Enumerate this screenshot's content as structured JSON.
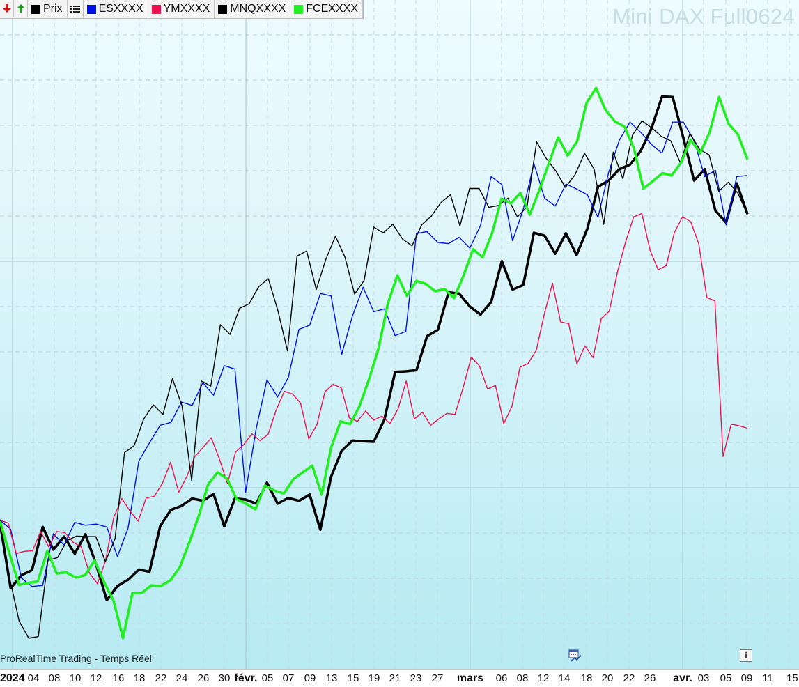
{
  "window": {
    "title": "Mini DAX Full0624"
  },
  "legend": {
    "buttons": [
      {
        "icon": "arrow-down-icon"
      },
      {
        "icon": "arrow-up-icon"
      }
    ],
    "items": [
      {
        "label": "Prix",
        "color": "#000000"
      },
      {
        "label": "ESXXXX",
        "color": "#0010e8"
      },
      {
        "label": "YMXXXX",
        "color": "#f0104f"
      },
      {
        "label": "MNQXXXX",
        "color": "#000000"
      },
      {
        "label": "FCEXXXX",
        "color": "#22ee22"
      }
    ],
    "list_icon": "list-icon"
  },
  "footer": {
    "source": "ProRealTime Trading - Temps Réel",
    "calendar_icon": "calendar-chart-icon",
    "info_icon": "info-icon",
    "info_glyph": "i"
  },
  "chart_data": {
    "type": "line",
    "title": "Mini DAX Full0624",
    "x_tick_labels": [
      {
        "label": "2024",
        "bold": true
      },
      {
        "label": "04"
      },
      {
        "label": "08"
      },
      {
        "label": "10"
      },
      {
        "label": "12"
      },
      {
        "label": "16"
      },
      {
        "label": "18"
      },
      {
        "label": "22"
      },
      {
        "label": "24"
      },
      {
        "label": "26"
      },
      {
        "label": "30"
      },
      {
        "label": "févr.",
        "bold": true
      },
      {
        "label": "05"
      },
      {
        "label": "07"
      },
      {
        "label": "09"
      },
      {
        "label": "13"
      },
      {
        "label": "15"
      },
      {
        "label": "19"
      },
      {
        "label": "21"
      },
      {
        "label": "23"
      },
      {
        "label": "27"
      },
      {
        "label": "mars",
        "bold": true
      },
      {
        "label": "06"
      },
      {
        "label": "08"
      },
      {
        "label": "12"
      },
      {
        "label": "14"
      },
      {
        "label": "18"
      },
      {
        "label": "20"
      },
      {
        "label": "22"
      },
      {
        "label": "26"
      },
      {
        "label": "avr.",
        "bold": true
      },
      {
        "label": "03"
      },
      {
        "label": "05"
      },
      {
        "label": "09"
      },
      {
        "label": "11"
      },
      {
        "label": "15"
      }
    ],
    "ylim": [
      0,
      100
    ],
    "grid": true,
    "series": [
      {
        "name": "Prix",
        "color": "#000000",
        "width": 3.6,
        "values": [
          20.3,
          8.8,
          11.1,
          12.0,
          19.6,
          15.6,
          17.9,
          14.9,
          18.3,
          13.0,
          6.7,
          9.2,
          10.3,
          12.1,
          11.7,
          19.7,
          22.6,
          23.3,
          24.6,
          24.2,
          25.4,
          19.7,
          24.6,
          24.4,
          23.7,
          27.4,
          23.7,
          24.7,
          24.2,
          25.3,
          19.1,
          28.4,
          33.0,
          34.8,
          34.7,
          34.6,
          38.5,
          46.9,
          47.0,
          47.2,
          53.2,
          54.3,
          60.9,
          60.7,
          58.4,
          57.0,
          59.2,
          66.4,
          61.4,
          62.2,
          71.4,
          70.9,
          67.7,
          71.3,
          67.5,
          72.1,
          79.5,
          80.6,
          82.6,
          83.4,
          85.8,
          89.7,
          95.4,
          95.3,
          88.1,
          80.6,
          82.6,
          75.3,
          73.2,
          80.1,
          74.7
        ]
      },
      {
        "name": "ESXXXX",
        "color": "#0010e8",
        "width": 1.4,
        "values": [
          20.8,
          19.2,
          10.6,
          9.1,
          9.3,
          18.4,
          16.4,
          20.4,
          19.9,
          20.1,
          19.6,
          14.4,
          19.4,
          31.2,
          34.4,
          37.5,
          38.0,
          41.6,
          41.0,
          45.0,
          42.8,
          48.0,
          47.4,
          25.7,
          37.0,
          45.5,
          42.5,
          45.9,
          54.4,
          55.1,
          60.7,
          60.3,
          50.0,
          56.7,
          61.8,
          57.5,
          58.0,
          53.3,
          54.0,
          71.3,
          71.6,
          69.7,
          69.5,
          70.6,
          68.7,
          72.7,
          81.3,
          79.9,
          70.0,
          75.5,
          83.6,
          77.5,
          76.1,
          80.0,
          79.1,
          78.1,
          74.1,
          82.0,
          87.7,
          90.9,
          89.1,
          87.0,
          85.4,
          90.9,
          90.9,
          87.6,
          81.3,
          82.4,
          72.8,
          81.3,
          81.5
        ]
      },
      {
        "name": "YMXXXX",
        "color": "#f0104f",
        "width": 1.4,
        "values": [
          20.8,
          20.3,
          14.9,
          15.3,
          15.4,
          18.8,
          16.1,
          18.8,
          18.6,
          16.9,
          16.1,
          11.5,
          9.6,
          13.7,
          21.3,
          24.6,
          22.4,
          20.6,
          24.7,
          25.0,
          27.3,
          31.0,
          25.7,
          28.5,
          32.0,
          33.6,
          35.3,
          31.6,
          27.2,
          32.8,
          34.1,
          36.0,
          34.8,
          35.9,
          40.2,
          43.5,
          43.0,
          41.4,
          35.1,
          37.6,
          43.4,
          44.7,
          44.1,
          38.8,
          38.2,
          40.0,
          38.4,
          39.1,
          37.8,
          40.4,
          45.3,
          38.6,
          39.8,
          37.5,
          38.6,
          39.6,
          39.4,
          44.1,
          49.5,
          48.0,
          43.9,
          44.5,
          37.8,
          40.8,
          47.7,
          48.4,
          50.7,
          57.1,
          62.5,
          55.7,
          55.4,
          48.3,
          51.5,
          49.4,
          56.3,
          57.6,
          64.5,
          69.8,
          74.2,
          74.8,
          68.4,
          64.9,
          65.6,
          71.4,
          74.2,
          73.4,
          69.5,
          60.0,
          59.4,
          32.0,
          37.7,
          37.4,
          37.0
        ]
      },
      {
        "name": "MNQXXXX",
        "color": "#000000",
        "width": 1.4,
        "values": [
          20.9,
          10.6,
          3.0,
          0.0,
          0.3,
          13.7,
          14.2,
          17.2,
          18.0,
          17.9,
          17.9,
          13.5,
          17.5,
          32.7,
          33.9,
          38.6,
          41.1,
          39.4,
          45.7,
          40.9,
          27.8,
          45.3,
          44.4,
          55.2,
          53.5,
          58.1,
          58.9,
          61.9,
          63.3,
          57.7,
          50.6,
          67.3,
          68.2,
          61.4,
          66.7,
          70.8,
          67.1,
          60.6,
          63.0,
          72.4,
          71.4,
          72.9,
          70.3,
          69.1,
          72.8,
          74.3,
          76.7,
          78.1,
          72.6,
          79.2,
          79.2,
          75.9,
          76.2,
          77.5,
          74.2,
          76.0,
          87.4,
          84.5,
          82.3,
          79.4,
          81.6,
          85.4,
          82.6,
          72.9,
          85.6,
          80.9,
          88.6,
          91.1,
          89.9,
          88.4,
          87.6,
          83.7,
          88.9,
          86.1,
          85.1,
          78.7,
          80.3,
          78.4,
          74.6
        ]
      },
      {
        "name": "FCEXXXX",
        "color": "#22ee22",
        "width": 3.6,
        "values": [
          20.6,
          14.9,
          9.4,
          9.7,
          10.0,
          15.4,
          11.4,
          11.6,
          10.7,
          11.1,
          13.7,
          9.9,
          6.6,
          0.0,
          8.0,
          8.0,
          9.3,
          9.2,
          10.2,
          12.5,
          16.8,
          21.5,
          27.1,
          29.2,
          28.1,
          24.5,
          23.7,
          22.7,
          26.9,
          26.0,
          25.5,
          28.0,
          29.2,
          30.4,
          25.3,
          33.6,
          38.2,
          37.7,
          40.9,
          45.6,
          51.0,
          59.0,
          63.9,
          60.3,
          62.9,
          62.4,
          61.1,
          61.5,
          59.9,
          63.9,
          68.5,
          67.1,
          71.3,
          77.4,
          76.6,
          78.4,
          74.6,
          78.9,
          83.6,
          88.2,
          85.0,
          87.5,
          94.3,
          96.9,
          93.0,
          91.0,
          90.1,
          86.3,
          79.2,
          80.5,
          81.9,
          81.5,
          83.8,
          87.8,
          85.4,
          89.1,
          95.3,
          90.6,
          88.7,
          84.3
        ]
      }
    ]
  }
}
